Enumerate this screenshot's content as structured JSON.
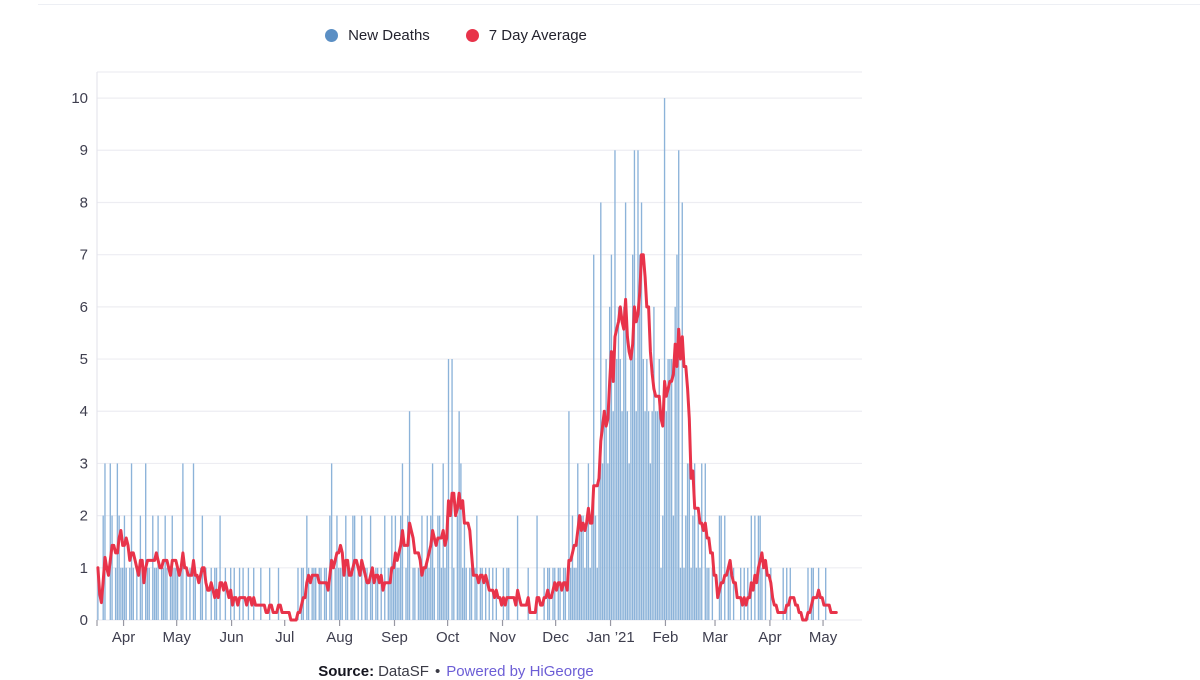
{
  "page": {
    "background": "#ffffff",
    "top_hairline_color": "#edeff4"
  },
  "legend": {
    "items": [
      {
        "label": "New Deaths",
        "color": "#5b8fc4"
      },
      {
        "label": "7 Day Average",
        "color": "#e8334a"
      }
    ]
  },
  "source": {
    "prefix": "Source:",
    "name": "DataSF",
    "separator": "•",
    "link": "Powered by HiGeorge",
    "link_color": "#6c5ed6"
  },
  "chart_data": {
    "type": "bar",
    "title": "",
    "description": "Daily new deaths (bars) with trailing 7-day average (line), mid-March 2020 through early May 2021",
    "legend_position": "top-center",
    "grid": true,
    "colors": {
      "bar": "#8cb3d9",
      "line": "#e8334a",
      "gridline": "#ededf2",
      "axis_border": "#e6e6ed",
      "tick": "#9898a3",
      "axis_label": "#3e3e4e"
    },
    "y_axis": {
      "ticks": [
        0,
        1,
        2,
        3,
        4,
        5,
        6,
        7,
        8,
        9,
        10
      ],
      "range": [
        0,
        10.5
      ]
    },
    "x_axis": {
      "labels": [
        "Apr",
        "May",
        "Jun",
        "Jul",
        "Aug",
        "Sep",
        "Oct",
        "Nov",
        "Dec",
        "Jan ’21",
        "Feb",
        "Mar",
        "Apr",
        "May"
      ],
      "tick_day_offsets": [
        15,
        45,
        76,
        106,
        137,
        168,
        198,
        229,
        259,
        290,
        321,
        349,
        380,
        410
      ],
      "axis_total_days": 432,
      "start_date": "2020-03-17"
    },
    "series": [
      {
        "name": "New Deaths",
        "type": "bar",
        "color": "#8cb3d9",
        "daily_values": [
          1,
          0,
          0,
          2,
          3,
          0,
          0,
          3,
          2,
          0,
          1,
          3,
          2,
          1,
          1,
          2,
          1,
          0,
          1,
          3,
          1,
          0,
          1,
          0,
          2,
          1,
          0,
          3,
          1,
          1,
          0,
          2,
          1,
          1,
          2,
          0,
          1,
          1,
          2,
          1,
          0,
          1,
          2,
          1,
          1,
          1,
          0,
          1,
          3,
          0,
          1,
          0,
          1,
          0,
          3,
          1,
          0,
          0,
          1,
          2,
          0,
          1,
          0,
          0,
          1,
          0,
          1,
          1,
          0,
          2,
          0,
          0,
          1,
          0,
          0,
          1,
          0,
          1,
          0,
          0,
          1,
          0,
          1,
          0,
          0,
          1,
          0,
          0,
          1,
          0,
          0,
          0,
          1,
          0,
          0,
          0,
          0,
          1,
          0,
          0,
          0,
          0,
          1,
          0,
          0,
          0,
          0,
          0,
          0,
          0,
          0,
          0,
          0,
          1,
          0,
          1,
          1,
          0,
          2,
          1,
          0,
          1,
          1,
          1,
          0,
          1,
          1,
          0,
          1,
          1,
          0,
          2,
          3,
          0,
          1,
          2,
          1,
          1,
          1,
          0,
          2,
          1,
          0,
          1,
          2,
          2,
          0,
          1,
          0,
          2,
          0,
          1,
          1,
          0,
          2,
          1,
          0,
          1,
          1,
          0,
          1,
          0,
          2,
          0,
          1,
          1,
          2,
          1,
          2,
          1,
          1,
          2,
          3,
          0,
          1,
          2,
          4,
          0,
          1,
          1,
          0,
          1,
          1,
          2,
          1,
          1,
          2,
          1,
          2,
          3,
          1,
          0,
          2,
          2,
          1,
          3,
          1,
          2,
          5,
          0,
          5,
          1,
          0,
          2,
          4,
          3,
          1,
          2,
          1,
          0,
          1,
          1,
          0,
          1,
          2,
          0,
          1,
          1,
          0,
          1,
          0,
          1,
          0,
          1,
          0,
          1,
          0,
          0,
          0,
          1,
          0,
          1,
          1,
          0,
          0,
          0,
          0,
          2,
          0,
          0,
          0,
          0,
          0,
          1,
          0,
          0,
          0,
          0,
          2,
          0,
          0,
          0,
          1,
          0,
          1,
          1,
          0,
          1,
          1,
          0,
          1,
          1,
          0,
          1,
          1,
          0,
          4,
          1,
          2,
          1,
          1,
          3,
          2,
          2,
          2,
          1,
          2,
          3,
          1,
          2,
          7,
          2,
          1,
          3,
          8,
          3,
          4,
          5,
          3,
          6,
          7,
          4,
          9,
          5,
          6,
          5,
          4,
          6,
          8,
          4,
          3,
          5,
          7,
          9,
          4,
          9,
          7,
          8,
          5,
          4,
          5,
          4,
          3,
          4,
          6,
          4,
          4,
          5,
          1,
          2,
          10,
          4,
          5,
          5,
          5,
          2,
          6,
          7,
          9,
          1,
          8,
          1,
          2,
          3,
          3,
          1,
          2,
          3,
          1,
          2,
          1,
          3,
          0,
          3,
          1,
          1,
          0,
          1,
          0,
          0,
          0,
          2,
          2,
          0,
          2,
          0,
          1,
          1,
          0,
          1,
          0,
          0,
          0,
          1,
          0,
          1,
          0,
          1,
          0,
          2,
          0,
          2,
          0,
          2,
          2,
          1,
          0,
          1,
          0,
          0,
          1,
          0,
          0,
          0,
          0,
          0,
          0,
          1,
          0,
          1,
          0,
          1,
          0,
          0,
          0,
          0,
          0,
          0,
          0,
          0,
          0,
          1,
          0,
          1,
          1,
          0,
          0,
          1,
          0,
          0,
          0,
          1,
          0,
          0,
          0,
          0,
          0,
          0
        ]
      },
      {
        "name": "7 Day Average",
        "type": "line",
        "color": "#e8334a",
        "derived": "trailing 7-day mean of New Deaths"
      }
    ]
  }
}
